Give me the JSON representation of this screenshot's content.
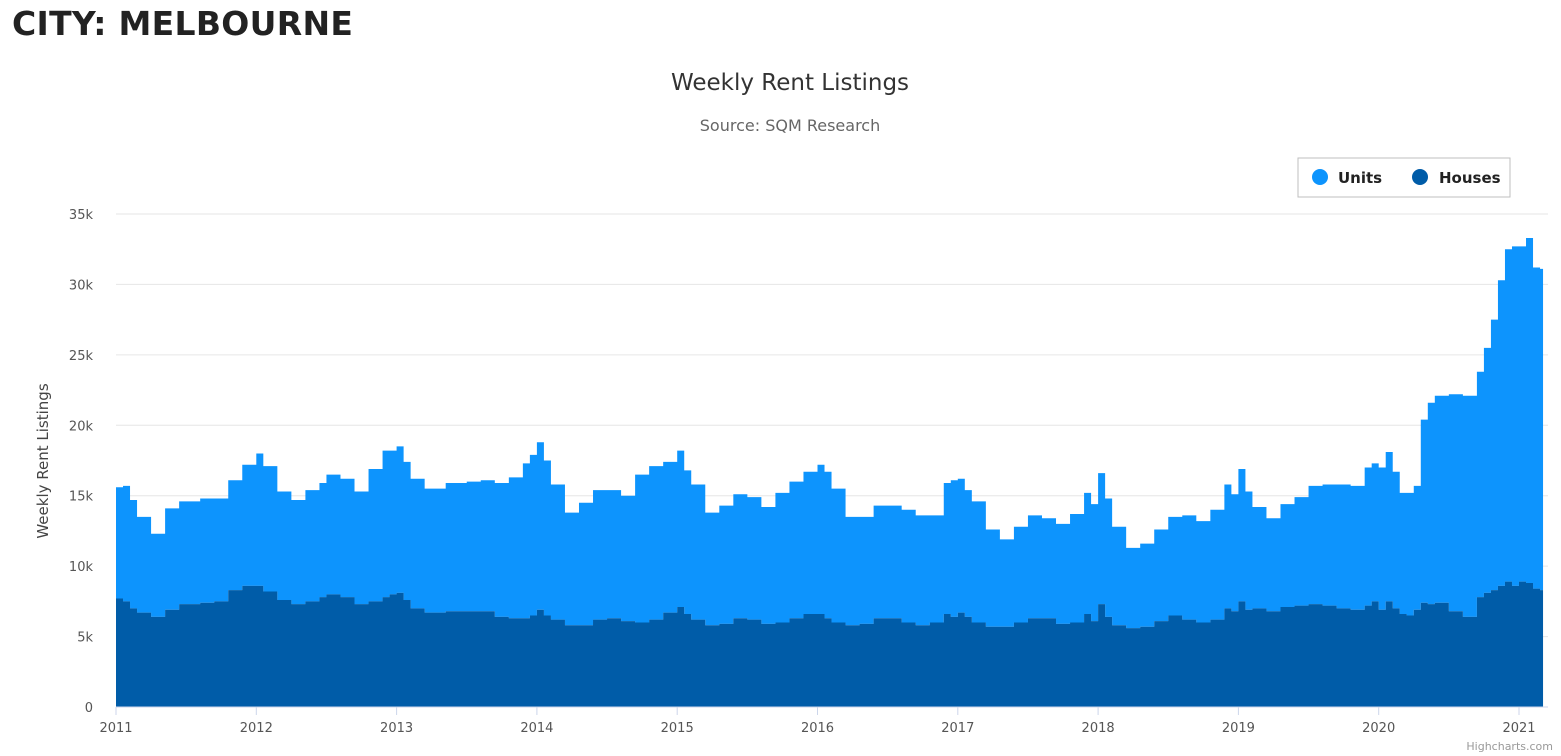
{
  "page": {
    "heading": "CITY: MELBOURNE",
    "credit": "Highcharts.com"
  },
  "chart_data": {
    "type": "area",
    "title": "Weekly Rent Listings",
    "subtitle": "Source: SQM Research",
    "ylabel": "Weekly Rent Listings",
    "xlabel": "",
    "ylim": [
      0,
      35000
    ],
    "xlim": [
      2011.0,
      2021.3
    ],
    "stacked": true,
    "grid": true,
    "legend_position": "top-right",
    "y_ticks": [
      0,
      5000,
      10000,
      15000,
      20000,
      25000,
      30000,
      35000
    ],
    "y_tick_labels": [
      "0",
      "5k",
      "10k",
      "15k",
      "20k",
      "25k",
      "30k",
      "35k"
    ],
    "x_ticks": [
      2011,
      2012,
      2013,
      2014,
      2015,
      2016,
      2017,
      2018,
      2019,
      2020,
      2021
    ],
    "x_tick_labels": [
      "2011",
      "2012",
      "2013",
      "2014",
      "2015",
      "2016",
      "2017",
      "2018",
      "2019",
      "2020",
      "2021"
    ],
    "x": [
      2011.0,
      2011.05,
      2011.1,
      2011.15,
      2011.25,
      2011.35,
      2011.45,
      2011.6,
      2011.7,
      2011.8,
      2011.9,
      2012.0,
      2012.05,
      2012.15,
      2012.25,
      2012.35,
      2012.45,
      2012.5,
      2012.6,
      2012.7,
      2012.8,
      2012.9,
      2012.95,
      2013.0,
      2013.05,
      2013.1,
      2013.2,
      2013.35,
      2013.5,
      2013.6,
      2013.7,
      2013.8,
      2013.9,
      2013.95,
      2014.0,
      2014.05,
      2014.1,
      2014.2,
      2014.3,
      2014.4,
      2014.5,
      2014.6,
      2014.7,
      2014.8,
      2014.9,
      2015.0,
      2015.05,
      2015.1,
      2015.2,
      2015.3,
      2015.4,
      2015.5,
      2015.6,
      2015.7,
      2015.8,
      2015.9,
      2016.0,
      2016.05,
      2016.1,
      2016.2,
      2016.3,
      2016.4,
      2016.5,
      2016.6,
      2016.7,
      2016.8,
      2016.9,
      2016.95,
      2017.0,
      2017.05,
      2017.1,
      2017.2,
      2017.3,
      2017.4,
      2017.5,
      2017.6,
      2017.7,
      2017.8,
      2017.9,
      2017.95,
      2018.0,
      2018.05,
      2018.1,
      2018.2,
      2018.3,
      2018.4,
      2018.5,
      2018.6,
      2018.7,
      2018.8,
      2018.9,
      2018.95,
      2019.0,
      2019.05,
      2019.1,
      2019.2,
      2019.3,
      2019.4,
      2019.5,
      2019.6,
      2019.7,
      2019.8,
      2019.9,
      2019.95,
      2020.0,
      2020.05,
      2020.1,
      2020.15,
      2020.2,
      2020.25,
      2020.3,
      2020.35,
      2020.4,
      2020.5,
      2020.6,
      2020.7,
      2020.75,
      2020.8,
      2020.85,
      2020.9,
      2020.95,
      2021.0,
      2021.05,
      2021.1,
      2021.15
    ],
    "series": [
      {
        "name": "Units",
        "color": "#0d94fd",
        "values": [
          7900,
          8200,
          7700,
          6800,
          5900,
          7200,
          7300,
          7400,
          7300,
          7800,
          8600,
          9400,
          8900,
          7700,
          7400,
          7900,
          8100,
          8500,
          8400,
          8000,
          9400,
          10400,
          10200,
          10400,
          9800,
          9200,
          8800,
          9100,
          9200,
          9300,
          9500,
          10000,
          11000,
          11400,
          11900,
          11000,
          9600,
          8000,
          8700,
          9200,
          9100,
          8900,
          10500,
          10900,
          10700,
          11100,
          10200,
          9600,
          8000,
          8400,
          8800,
          8700,
          8300,
          9200,
          9700,
          10100,
          10600,
          10400,
          9500,
          7700,
          7600,
          8000,
          8000,
          8000,
          7800,
          7600,
          9300,
          9700,
          9500,
          9000,
          8600,
          6900,
          6200,
          6800,
          7300,
          7100,
          7100,
          7700,
          8600,
          8300,
          9300,
          8400,
          7000,
          5700,
          5900,
          6500,
          7000,
          7400,
          7200,
          7800,
          8800,
          8300,
          9400,
          8400,
          7200,
          6600,
          7300,
          7700,
          8400,
          8600,
          8800,
          8800,
          9800,
          9800,
          10100,
          10600,
          9700,
          8600,
          8700,
          8800,
          13000,
          14300,
          14700,
          15400,
          15700,
          16000,
          17400,
          19200,
          21700,
          23600,
          24100,
          23800,
          24500,
          22800,
          22800
        ]
      },
      {
        "name": "Houses",
        "color": "#005ca8",
        "values": [
          7700,
          7500,
          7000,
          6700,
          6400,
          6900,
          7300,
          7400,
          7500,
          8300,
          8600,
          8600,
          8200,
          7600,
          7300,
          7500,
          7800,
          8000,
          7800,
          7300,
          7500,
          7800,
          8000,
          8100,
          7600,
          7000,
          6700,
          6800,
          6800,
          6800,
          6400,
          6300,
          6300,
          6500,
          6900,
          6500,
          6200,
          5800,
          5800,
          6200,
          6300,
          6100,
          6000,
          6200,
          6700,
          7100,
          6600,
          6200,
          5800,
          5900,
          6300,
          6200,
          5900,
          6000,
          6300,
          6600,
          6600,
          6300,
          6000,
          5800,
          5900,
          6300,
          6300,
          6000,
          5800,
          6000,
          6600,
          6400,
          6700,
          6400,
          6000,
          5700,
          5700,
          6000,
          6300,
          6300,
          5900,
          6000,
          6600,
          6100,
          7300,
          6400,
          5800,
          5600,
          5700,
          6100,
          6500,
          6200,
          6000,
          6200,
          7000,
          6800,
          7500,
          6900,
          7000,
          6800,
          7100,
          7200,
          7300,
          7200,
          7000,
          6900,
          7200,
          7500,
          6900,
          7500,
          7000,
          6600,
          6500,
          6900,
          7400,
          7300,
          7400,
          6800,
          6400,
          7800,
          8100,
          8300,
          8600,
          8900,
          8600,
          8900,
          8800,
          8400,
          8300
        ]
      }
    ]
  }
}
